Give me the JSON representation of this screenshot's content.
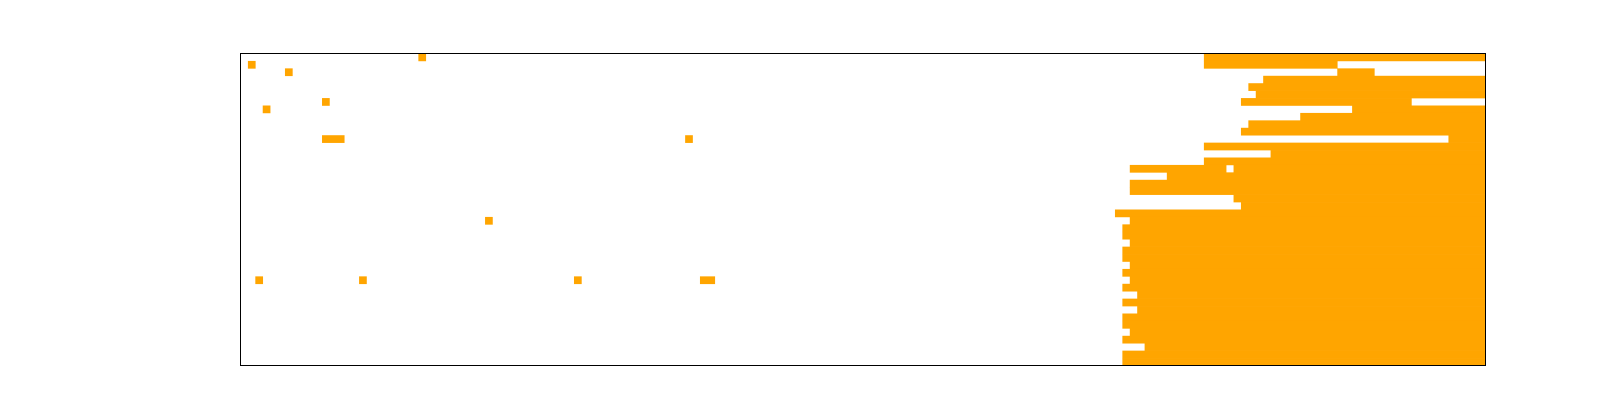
{
  "chart_data": {
    "type": "heatmap",
    "title": "",
    "xlabel": "",
    "ylabel": "",
    "n_cols": 168,
    "n_rows": 42,
    "colors": {
      "cell_on": "#ffa500",
      "cell_off": "#ffffff",
      "frame": "#000000"
    },
    "grid": false,
    "rows": [
      {
        "runs": [
          [
            24,
            25
          ],
          [
            130,
            168
          ]
        ]
      },
      {
        "runs": [
          [
            1,
            2
          ],
          [
            130,
            148
          ]
        ]
      },
      {
        "runs": [
          [
            6,
            7
          ],
          [
            148,
            153
          ]
        ]
      },
      {
        "runs": [
          [
            138,
            168
          ]
        ]
      },
      {
        "runs": [
          [
            136,
            168
          ]
        ]
      },
      {
        "runs": [
          [
            137,
            168
          ]
        ]
      },
      {
        "runs": [
          [
            11,
            12
          ],
          [
            135,
            158
          ]
        ]
      },
      {
        "runs": [
          [
            3,
            4
          ],
          [
            150,
            168
          ]
        ]
      },
      {
        "runs": [
          [
            143,
            168
          ]
        ]
      },
      {
        "runs": [
          [
            136,
            168
          ]
        ]
      },
      {
        "runs": [
          [
            135,
            168
          ]
        ]
      },
      {
        "runs": [
          [
            11,
            14
          ],
          [
            60,
            61
          ],
          [
            163,
            168
          ]
        ]
      },
      {
        "runs": [
          [
            130,
            168
          ]
        ]
      },
      {
        "runs": [
          [
            139,
            168
          ]
        ]
      },
      {
        "runs": [
          [
            130,
            168
          ]
        ]
      },
      {
        "runs": [
          [
            120,
            133
          ],
          [
            134,
            168
          ]
        ]
      },
      {
        "runs": [
          [
            125,
            168
          ]
        ]
      },
      {
        "runs": [
          [
            120,
            168
          ]
        ]
      },
      {
        "runs": [
          [
            120,
            168
          ]
        ]
      },
      {
        "runs": [
          [
            134,
            168
          ]
        ]
      },
      {
        "runs": [
          [
            135,
            168
          ]
        ]
      },
      {
        "runs": [
          [
            118,
            168
          ]
        ]
      },
      {
        "runs": [
          [
            33,
            34
          ],
          [
            120,
            168
          ]
        ]
      },
      {
        "runs": [
          [
            119,
            168
          ]
        ]
      },
      {
        "runs": [
          [
            119,
            168
          ]
        ]
      },
      {
        "runs": [
          [
            120,
            168
          ]
        ]
      },
      {
        "runs": [
          [
            119,
            168
          ]
        ]
      },
      {
        "runs": [
          [
            119,
            168
          ]
        ]
      },
      {
        "runs": [
          [
            120,
            168
          ]
        ]
      },
      {
        "runs": [
          [
            119,
            168
          ]
        ]
      },
      {
        "runs": [
          [
            2,
            3
          ],
          [
            16,
            17
          ],
          [
            45,
            46
          ],
          [
            62,
            64
          ],
          [
            120,
            168
          ]
        ]
      },
      {
        "runs": [
          [
            119,
            168
          ]
        ]
      },
      {
        "runs": [
          [
            121,
            168
          ]
        ]
      },
      {
        "runs": [
          [
            119,
            168
          ]
        ]
      },
      {
        "runs": [
          [
            121,
            168
          ]
        ]
      },
      {
        "runs": [
          [
            119,
            168
          ]
        ]
      },
      {
        "runs": [
          [
            119,
            168
          ]
        ]
      },
      {
        "runs": [
          [
            120,
            168
          ]
        ]
      },
      {
        "runs": [
          [
            119,
            168
          ]
        ]
      },
      {
        "runs": [
          [
            122,
            168
          ]
        ]
      },
      {
        "runs": [
          [
            119,
            168
          ]
        ]
      },
      {
        "runs": [
          [
            119,
            168
          ]
        ]
      }
    ]
  }
}
